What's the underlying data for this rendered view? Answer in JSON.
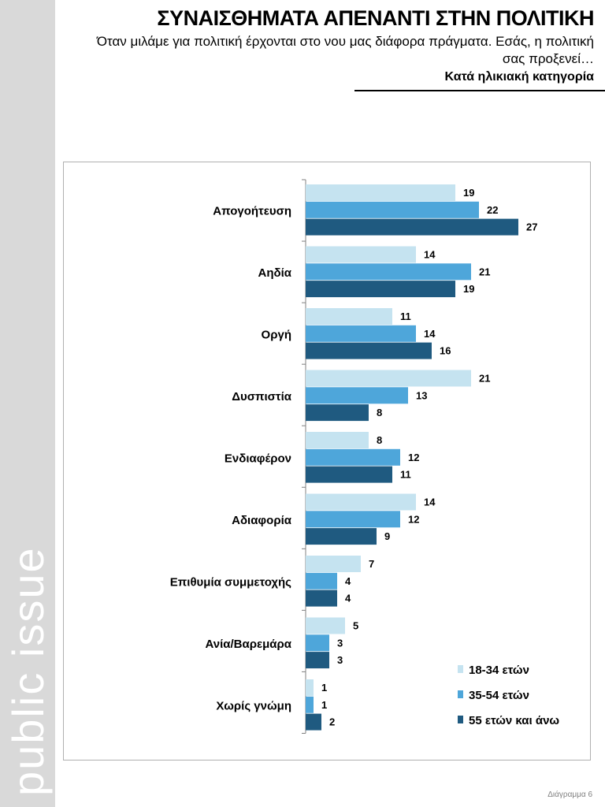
{
  "brand": {
    "text": "public issue"
  },
  "header": {
    "title": "ΣΥΝΑΙΣΘΗΜΑΤΑ ΑΠΕΝΑΝΤΙ ΣΤΗΝ ΠΟΛΙΤΙΚΗ",
    "subtitle": "Όταν μιλάμε για πολιτική έρχονται στο νου μας διάφορα πράγματα. Εσάς, η πολιτική σας προξενεί…",
    "subtitle2": "Κατά ηλικιακή κατηγορία"
  },
  "footer": {
    "label": "Διάγραμμα 6"
  },
  "chart_data": {
    "type": "bar",
    "orientation": "horizontal",
    "categories": [
      "Απογοήτευση",
      "Αηδία",
      "Οργή",
      "Δυσπιστία",
      "Ενδιαφέρον",
      "Αδιαφορία",
      "Επιθυμία συμμετοχής",
      "Ανία/Βαρεμάρα",
      "Χωρίς γνώμη"
    ],
    "series": [
      {
        "name": "18-34 ετών",
        "color": "#c5e3f0",
        "values": [
          19,
          14,
          11,
          21,
          8,
          14,
          7,
          5,
          1
        ]
      },
      {
        "name": "35-54 ετών",
        "color": "#4ea6da",
        "values": [
          22,
          21,
          14,
          13,
          12,
          12,
          4,
          3,
          1
        ]
      },
      {
        "name": "55 ετών και άνω",
        "color": "#1f5a80",
        "values": [
          27,
          19,
          16,
          8,
          11,
          9,
          4,
          3,
          2
        ]
      }
    ],
    "legend_position": "bottom-right",
    "xlim": [
      0,
      30
    ],
    "title": "",
    "xlabel": "",
    "ylabel": ""
  }
}
